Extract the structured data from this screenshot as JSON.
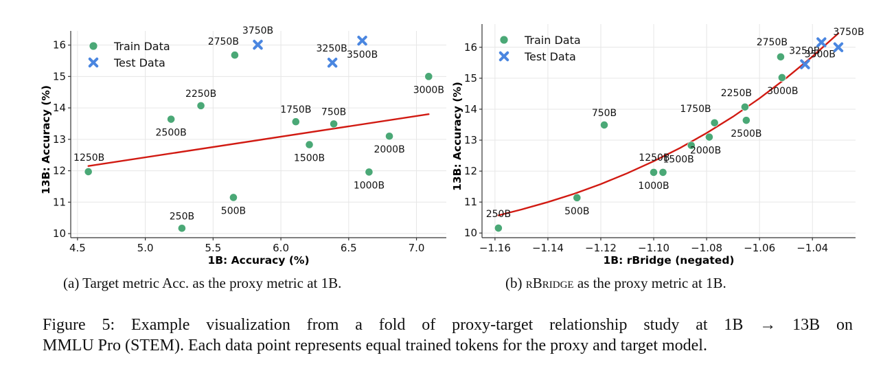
{
  "chart_data": [
    {
      "id": "a",
      "type": "scatter",
      "xlabel": "1B: Accuracy (%)",
      "ylabel": "13B: Accuracy (%)",
      "xlim": [
        4.45,
        7.22
      ],
      "ylim": [
        9.87,
        16.45
      ],
      "xticks": [
        4.5,
        5.0,
        5.5,
        6.0,
        6.5,
        7.0
      ],
      "xtick_labels": [
        "4.5",
        "5.0",
        "5.5",
        "6.0",
        "6.5",
        "7.0"
      ],
      "yticks": [
        10,
        11,
        12,
        13,
        14,
        15,
        16
      ],
      "ytick_labels": [
        "10",
        "11",
        "12",
        "13",
        "14",
        "15",
        "16"
      ],
      "grid": true,
      "legend": {
        "placement": "top-left",
        "entries": [
          {
            "label": "Train Data",
            "marker": "circle",
            "color": "#4aa876"
          },
          {
            "label": "Test Data",
            "marker": "x",
            "color": "#4a86e0"
          }
        ]
      },
      "series": [
        {
          "name": "Train Data",
          "color": "#4aa876",
          "points": [
            {
              "label": "250B",
              "x": 5.27,
              "y": 10.17,
              "lpos": "above"
            },
            {
              "label": "500B",
              "x": 5.65,
              "y": 11.15,
              "lpos": "below"
            },
            {
              "label": "750B",
              "x": 6.39,
              "y": 13.49,
              "lpos": "above"
            },
            {
              "label": "1000B",
              "x": 6.65,
              "y": 11.96,
              "lpos": "below"
            },
            {
              "label": "1250B",
              "x": 4.58,
              "y": 11.97,
              "lpos": "above"
            },
            {
              "label": "1500B",
              "x": 6.21,
              "y": 12.83,
              "lpos": "below"
            },
            {
              "label": "1750B",
              "x": 6.11,
              "y": 13.56,
              "lpos": "above"
            },
            {
              "label": "2000B",
              "x": 6.8,
              "y": 13.1,
              "lpos": "below"
            },
            {
              "label": "2250B",
              "x": 5.41,
              "y": 14.07,
              "lpos": "above"
            },
            {
              "label": "2500B",
              "x": 5.19,
              "y": 13.64,
              "lpos": "below"
            },
            {
              "label": "2750B",
              "x": 5.66,
              "y": 15.68,
              "lpos": "above-left"
            },
            {
              "label": "3000B",
              "x": 7.09,
              "y": 15.0,
              "lpos": "below"
            }
          ]
        },
        {
          "name": "Test Data",
          "color": "#4a86e0",
          "points": [
            {
              "label": "3250B",
              "x": 6.38,
              "y": 15.44,
              "lpos": "above"
            },
            {
              "label": "3500B",
              "x": 6.6,
              "y": 16.14,
              "lpos": "below"
            },
            {
              "label": "3750B",
              "x": 5.83,
              "y": 16.01,
              "lpos": "above"
            }
          ]
        }
      ],
      "fit": {
        "color": "#d11a12",
        "kind": "linear",
        "points": [
          [
            4.58,
            12.15
          ],
          [
            7.09,
            13.8
          ]
        ]
      }
    },
    {
      "id": "b",
      "type": "scatter",
      "xlabel": "1B: rBridge (negated)",
      "ylabel": "13B: Accuracy (%)",
      "xlim": [
        -1.1649,
        -1.0237
      ],
      "ylim": [
        9.85,
        16.75
      ],
      "xticks": [
        -1.16,
        -1.14,
        -1.12,
        -1.1,
        -1.08,
        -1.06,
        -1.04
      ],
      "xtick_labels": [
        "−1.16",
        "−1.14",
        "−1.12",
        "−1.10",
        "−1.08",
        "−1.06",
        "−1.04"
      ],
      "yticks": [
        10,
        11,
        12,
        13,
        14,
        15,
        16
      ],
      "ytick_labels": [
        "10",
        "11",
        "12",
        "13",
        "14",
        "15",
        "16"
      ],
      "grid": true,
      "legend": {
        "placement": "top-left",
        "entries": [
          {
            "label": "Train Data",
            "marker": "circle",
            "color": "#4aa876"
          },
          {
            "label": "Test Data",
            "marker": "x",
            "color": "#4a86e0"
          }
        ]
      },
      "series": [
        {
          "name": "Train Data",
          "color": "#4aa876",
          "points": [
            {
              "label": "250B",
              "x": -1.1587,
              "y": 10.16,
              "lpos": "above"
            },
            {
              "label": "500B",
              "x": -1.129,
              "y": 11.14,
              "lpos": "below"
            },
            {
              "label": "750B",
              "x": -1.1187,
              "y": 13.49,
              "lpos": "above"
            },
            {
              "label": "1000B",
              "x": -1.1,
              "y": 11.96,
              "lpos": "below"
            },
            {
              "label": "1250B",
              "x": -1.0965,
              "y": 11.96,
              "lpos": "above-left"
            },
            {
              "label": "1500B",
              "x": -1.0858,
              "y": 12.83,
              "lpos": "below-left"
            },
            {
              "label": "1750B",
              "x": -1.077,
              "y": 13.56,
              "lpos": "above-left"
            },
            {
              "label": "2000B",
              "x": -1.079,
              "y": 13.1,
              "lpos": "below-right"
            },
            {
              "label": "2250B",
              "x": -1.0655,
              "y": 14.07,
              "lpos": "above-left"
            },
            {
              "label": "2500B",
              "x": -1.065,
              "y": 13.64,
              "lpos": "below"
            },
            {
              "label": "2750B",
              "x": -1.052,
              "y": 15.69,
              "lpos": "above-left"
            },
            {
              "label": "3000B",
              "x": -1.0515,
              "y": 15.02,
              "lpos": "below"
            }
          ]
        },
        {
          "name": "Test Data",
          "color": "#4a86e0",
          "points": [
            {
              "label": "3250B",
              "x": -1.0428,
              "y": 15.45,
              "lpos": "above-left"
            },
            {
              "label": "3500B",
              "x": -1.0366,
              "y": 16.16,
              "lpos": "below"
            },
            {
              "label": "3750B",
              "x": -1.0302,
              "y": 16.0,
              "lpos": "above"
            }
          ]
        }
      ],
      "fit": {
        "color": "#d11a12",
        "kind": "curve",
        "points": [
          [
            -1.1587,
            10.57
          ],
          [
            -1.15,
            10.76
          ],
          [
            -1.14,
            11.0
          ],
          [
            -1.13,
            11.27
          ],
          [
            -1.12,
            11.58
          ],
          [
            -1.11,
            11.93
          ],
          [
            -1.1,
            12.32
          ],
          [
            -1.09,
            12.75
          ],
          [
            -1.08,
            13.23
          ],
          [
            -1.07,
            13.76
          ],
          [
            -1.06,
            14.35
          ],
          [
            -1.05,
            15.0
          ],
          [
            -1.04,
            15.7
          ],
          [
            -1.0302,
            16.45
          ]
        ]
      }
    }
  ],
  "subcaptions": {
    "a": {
      "prefix": "(a) Target metric Acc. as the proxy metric at 1B.",
      "smallcaps": "",
      "suffix": ""
    },
    "b": {
      "prefix": "(b) ",
      "smallcaps": "rBridge",
      "suffix": " as the proxy metric at 1B."
    }
  },
  "figure_caption": {
    "line1": "Figure 5:  Example visualization from a fold of proxy-target relationship study at 1B → 13B on",
    "line2": "MMLU Pro (STEM). Each data point represents equal trained tokens for the proxy and target model."
  }
}
